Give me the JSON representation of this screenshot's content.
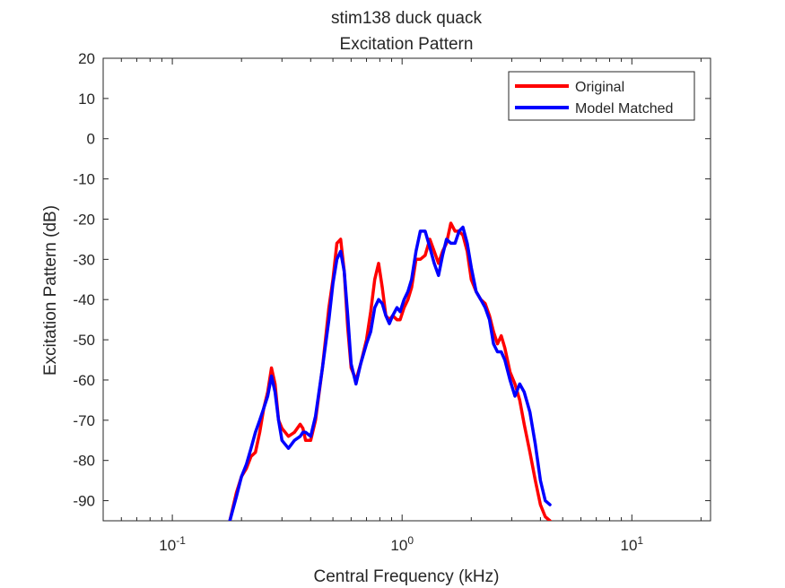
{
  "chart_data": {
    "type": "line",
    "title": "stim138 duck quack",
    "subtitle": "Excitation Pattern",
    "xlabel": "Central Frequency (kHz)",
    "ylabel": "Excitation Pattern (dB)",
    "xscale": "log",
    "xlim": [
      0.05,
      22
    ],
    "ylim": [
      -95,
      20
    ],
    "yticks": [
      20,
      10,
      0,
      -10,
      -20,
      -30,
      -40,
      -50,
      -60,
      -70,
      -80,
      -90
    ],
    "xticks": [
      {
        "value": 0.1,
        "base": "10",
        "exp": "-1"
      },
      {
        "value": 1,
        "base": "10",
        "exp": "0"
      },
      {
        "value": 10,
        "base": "10",
        "exp": "1"
      }
    ],
    "grid": false,
    "legend_position": "top-right",
    "series": [
      {
        "name": "Original",
        "color": "#ff0000",
        "x": [
          0.178,
          0.19,
          0.2,
          0.21,
          0.22,
          0.23,
          0.24,
          0.25,
          0.26,
          0.27,
          0.28,
          0.29,
          0.3,
          0.32,
          0.34,
          0.36,
          0.37,
          0.38,
          0.4,
          0.42,
          0.45,
          0.48,
          0.5,
          0.52,
          0.54,
          0.56,
          0.58,
          0.6,
          0.63,
          0.66,
          0.7,
          0.73,
          0.76,
          0.79,
          0.82,
          0.85,
          0.88,
          0.91,
          0.95,
          0.98,
          1.02,
          1.06,
          1.1,
          1.15,
          1.2,
          1.26,
          1.32,
          1.38,
          1.44,
          1.5,
          1.56,
          1.63,
          1.7,
          1.77,
          1.84,
          1.92,
          2.0,
          2.1,
          2.2,
          2.3,
          2.4,
          2.5,
          2.6,
          2.7,
          2.8,
          2.95,
          3.1,
          3.25,
          3.4,
          3.6,
          3.8,
          4.0,
          4.2,
          4.4
        ],
        "y": [
          -95,
          -88,
          -84,
          -82,
          -79,
          -78,
          -73,
          -67,
          -63,
          -57,
          -61,
          -70,
          -72,
          -74,
          -73,
          -71,
          -72,
          -75,
          -75,
          -70,
          -57,
          -42,
          -35,
          -26,
          -25,
          -33,
          -47,
          -57,
          -60,
          -56,
          -50,
          -43,
          -35,
          -31,
          -37,
          -44,
          -45,
          -44,
          -45,
          -45,
          -42,
          -40,
          -37,
          -30,
          -30,
          -29,
          -25,
          -28,
          -31,
          -28,
          -26,
          -21,
          -23,
          -23,
          -24,
          -28,
          -35,
          -38,
          -40,
          -41,
          -44,
          -48,
          -51,
          -49,
          -52,
          -58,
          -61,
          -65,
          -71,
          -78,
          -85,
          -91,
          -94,
          -95
        ]
      },
      {
        "name": "Model Matched",
        "color": "#0000ff",
        "x": [
          0.178,
          0.19,
          0.2,
          0.21,
          0.22,
          0.23,
          0.24,
          0.25,
          0.26,
          0.27,
          0.28,
          0.29,
          0.3,
          0.32,
          0.34,
          0.36,
          0.37,
          0.38,
          0.4,
          0.42,
          0.45,
          0.48,
          0.5,
          0.52,
          0.54,
          0.56,
          0.58,
          0.6,
          0.63,
          0.66,
          0.7,
          0.73,
          0.76,
          0.79,
          0.82,
          0.85,
          0.88,
          0.91,
          0.95,
          0.98,
          1.02,
          1.06,
          1.1,
          1.15,
          1.2,
          1.26,
          1.32,
          1.38,
          1.44,
          1.5,
          1.56,
          1.63,
          1.7,
          1.77,
          1.84,
          1.92,
          2.0,
          2.1,
          2.2,
          2.3,
          2.4,
          2.5,
          2.6,
          2.7,
          2.8,
          2.95,
          3.1,
          3.25,
          3.4,
          3.6,
          3.8,
          4.0,
          4.2,
          4.4
        ],
        "y": [
          -95,
          -89,
          -84,
          -81,
          -77,
          -73,
          -70,
          -67,
          -64,
          -59,
          -63,
          -70,
          -75,
          -77,
          -75,
          -74,
          -73,
          -73,
          -74,
          -69,
          -57,
          -45,
          -36,
          -30,
          -28,
          -33,
          -44,
          -56,
          -61,
          -56,
          -51,
          -48,
          -42,
          -40,
          -41,
          -44,
          -46,
          -44,
          -42,
          -43,
          -40,
          -38,
          -35,
          -28,
          -23,
          -23,
          -27,
          -31,
          -34,
          -29,
          -25,
          -26,
          -26,
          -23,
          -22,
          -26,
          -32,
          -38,
          -40,
          -42,
          -45,
          -51,
          -53,
          -53,
          -55,
          -60,
          -64,
          -61,
          -63,
          -68,
          -76,
          -85,
          -90,
          -91
        ]
      }
    ]
  }
}
